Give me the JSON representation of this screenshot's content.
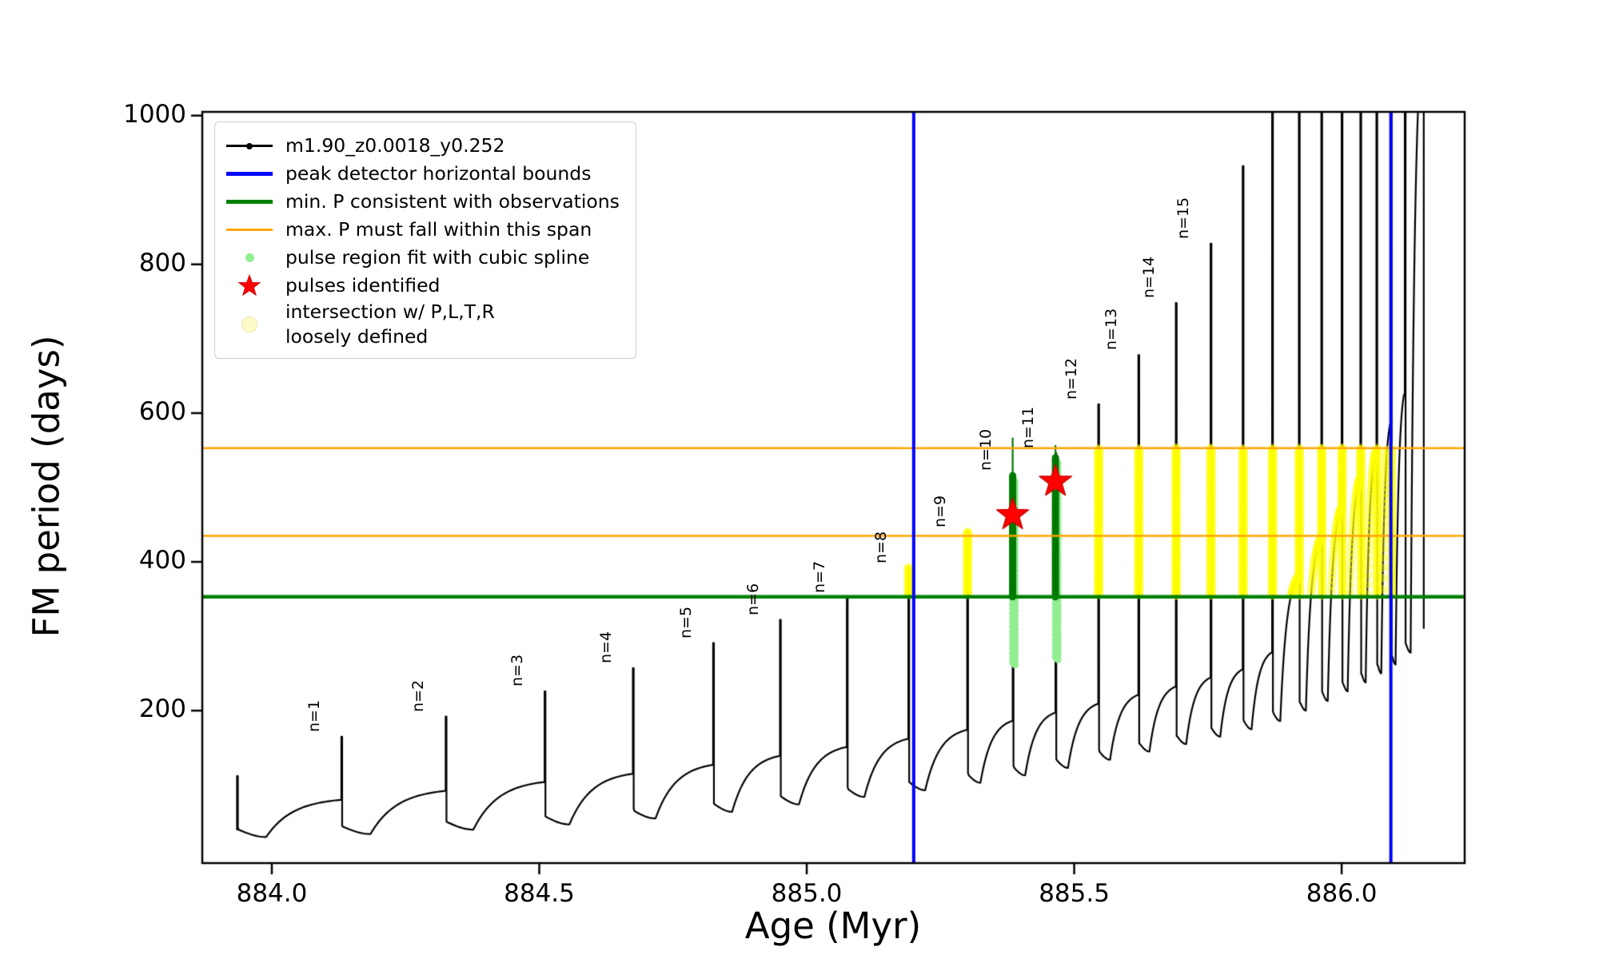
{
  "chart_data": {
    "type": "line",
    "title": "",
    "xlabel": "Age (Myr)",
    "ylabel": "FM period (days)",
    "xlim": [
      883.87,
      886.23
    ],
    "ylim": [
      -5,
      1005
    ],
    "grid": false,
    "legend_position": "upper left",
    "xticks": [
      {
        "v": 884.0,
        "label": "884.0"
      },
      {
        "v": 884.5,
        "label": "884.5"
      },
      {
        "v": 885.0,
        "label": "885.0"
      },
      {
        "v": 885.5,
        "label": "885.5"
      },
      {
        "v": 886.0,
        "label": "886.0"
      }
    ],
    "yticks": [
      {
        "v": 200,
        "label": "200"
      },
      {
        "v": 400,
        "label": "400"
      },
      {
        "v": 600,
        "label": "600"
      },
      {
        "v": 800,
        "label": "800"
      },
      {
        "v": 1000,
        "label": "1000"
      }
    ],
    "legend": [
      {
        "marker": "line-dot",
        "color": "#000000",
        "icon": "track-line-icon",
        "label": "m1.90_z0.0018_y0.252"
      },
      {
        "marker": "thick-line",
        "color": "#0000ff",
        "icon": "blue-bound-icon",
        "label": "peak detector horizontal bounds"
      },
      {
        "marker": "thick-line",
        "color": "#008000",
        "icon": "green-minp-icon",
        "label": "min. P consistent with observations"
      },
      {
        "marker": "line",
        "color": "#ffa500",
        "icon": "orange-span-icon",
        "label": "max. P must fall within this span"
      },
      {
        "marker": "dot",
        "color": "#90ee90",
        "icon": "spline-dot-icon",
        "label": "pulse region fit with cubic spline"
      },
      {
        "marker": "star",
        "color": "#ff0000",
        "icon": "pulse-star-icon",
        "label": "pulses identified"
      },
      {
        "marker": "bigdot",
        "color": "#fdfbc8",
        "icon": "intersection-dot-icon",
        "label": "intersection w/ P,L,T,R\nloosely defined"
      }
    ],
    "annotations": {
      "blue_vlines": [
        885.2,
        886.092
      ],
      "green_hline": 353,
      "orange_hlines": [
        435,
        553
      ],
      "yellow_band": {
        "xmin": 885.17,
        "xmax": 886.1,
        "ymin": 355,
        "ymax": 553
      },
      "stars": [
        {
          "x": 885.385,
          "y": 463
        },
        {
          "x": 885.465,
          "y": 508
        }
      ],
      "spline_pulses": [
        {
          "x": 885.385,
          "dots_ymin": 265,
          "bar_ymin": 353,
          "ymax": 516,
          "whisker_top": 566
        },
        {
          "x": 885.465,
          "dots_ymin": 272,
          "bar_ymin": 353,
          "ymax": 540,
          "whisker_top": 556
        }
      ]
    },
    "pulses": [
      {
        "x": 883.935,
        "rise": 40,
        "peak": 112,
        "drop": 30,
        "label": ""
      },
      {
        "x": 884.13,
        "rise": 80,
        "peak": 165,
        "drop": 34,
        "label": "n=1"
      },
      {
        "x": 884.325,
        "rise": 92,
        "peak": 192,
        "drop": 40,
        "label": "n=2"
      },
      {
        "x": 884.51,
        "rise": 104,
        "peak": 226,
        "drop": 47,
        "label": "n=3"
      },
      {
        "x": 884.675,
        "rise": 115,
        "peak": 257,
        "drop": 55,
        "label": "n=4"
      },
      {
        "x": 884.825,
        "rise": 127,
        "peak": 291,
        "drop": 64,
        "label": "n=5"
      },
      {
        "x": 884.95,
        "rise": 139,
        "peak": 322,
        "drop": 74,
        "label": "n=6"
      },
      {
        "x": 885.075,
        "rise": 151,
        "peak": 352,
        "drop": 84,
        "label": "n=7"
      },
      {
        "x": 885.19,
        "rise": 162,
        "peak": 392,
        "drop": 93,
        "label": "n=8"
      },
      {
        "x": 885.3,
        "rise": 174,
        "peak": 440,
        "drop": 103,
        "label": "n=9"
      },
      {
        "x": 885.385,
        "rise": 186,
        "peak": 516,
        "drop": 113,
        "label": "n=10"
      },
      {
        "x": 885.465,
        "rise": 197,
        "peak": 546,
        "drop": 123,
        "label": "n=11"
      },
      {
        "x": 885.545,
        "rise": 209,
        "peak": 612,
        "drop": 134,
        "label": "n=12"
      },
      {
        "x": 885.62,
        "rise": 221,
        "peak": 678,
        "drop": 145,
        "label": "n=13"
      },
      {
        "x": 885.69,
        "rise": 232,
        "peak": 748,
        "drop": 155,
        "label": "n=14"
      },
      {
        "x": 885.755,
        "rise": 244,
        "peak": 828,
        "drop": 165,
        "label": "n=15"
      },
      {
        "x": 885.815,
        "rise": 255,
        "peak": 932,
        "drop": 175,
        "label": ""
      },
      {
        "x": 885.87,
        "rise": 278,
        "peak": 1060,
        "drop": 186,
        "label": ""
      },
      {
        "x": 885.92,
        "rise": 380,
        "peak": 1180,
        "drop": 200,
        "label": ""
      },
      {
        "x": 885.962,
        "rise": 432,
        "peak": 1300,
        "drop": 213,
        "label": ""
      },
      {
        "x": 886.0,
        "rise": 472,
        "peak": 1450,
        "drop": 226,
        "label": ""
      },
      {
        "x": 886.035,
        "rise": 512,
        "peak": 1600,
        "drop": 238,
        "label": ""
      },
      {
        "x": 886.065,
        "rise": 548,
        "peak": 1750,
        "drop": 250,
        "label": ""
      },
      {
        "x": 886.092,
        "rise": 585,
        "peak": 1900,
        "drop": 262,
        "label": ""
      },
      {
        "x": 886.118,
        "rise": 625,
        "peak": 2100,
        "drop": 278,
        "label": ""
      },
      {
        "x": 886.152,
        "rise": 1100,
        "peak": 2300,
        "drop": 300,
        "label": ""
      }
    ]
  }
}
